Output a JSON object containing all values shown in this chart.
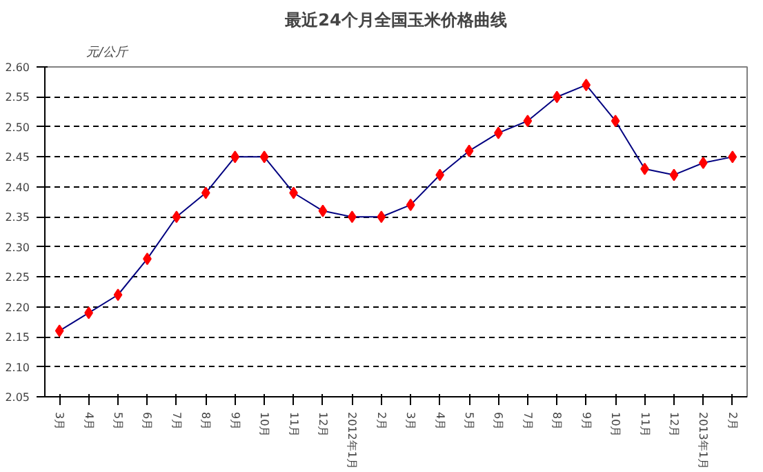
{
  "chart_data": {
    "type": "line",
    "title": "最近24个月全国玉米价格曲线",
    "ylabel": "元/公斤",
    "categories": [
      "3月",
      "4月",
      "5月",
      "6月",
      "7月",
      "8月",
      "9月",
      "10月",
      "11月",
      "12月",
      "2012年1月",
      "2月",
      "3月",
      "4月",
      "5月",
      "6月",
      "7月",
      "8月",
      "9月",
      "10月",
      "11月",
      "12月",
      "2013年1月",
      "2月"
    ],
    "series": [
      {
        "color": "#000080",
        "values": [
          2.16,
          2.19,
          2.22,
          2.28,
          2.35,
          2.39,
          2.45,
          2.45,
          2.39,
          2.36,
          2.35,
          2.35,
          2.37,
          2.42,
          2.46,
          2.49,
          2.51,
          2.55,
          2.57,
          2.51,
          2.43,
          2.42,
          2.44,
          2.45
        ]
      }
    ],
    "marker": "diamond",
    "ylim": [
      2.05,
      2.6
    ],
    "yticks": [
      {
        "value": 2.05,
        "label": "2.05"
      },
      {
        "value": 2.1,
        "label": "2.10"
      },
      {
        "value": 2.15,
        "label": "2.15"
      },
      {
        "value": 2.2,
        "label": "2.20"
      },
      {
        "value": 2.25,
        "label": "2.25"
      },
      {
        "value": 2.3,
        "label": "2.30"
      },
      {
        "value": 2.35,
        "label": "2.35"
      },
      {
        "value": 2.4,
        "label": "2.40"
      },
      {
        "value": 2.45,
        "label": "2.45"
      },
      {
        "value": 2.5,
        "label": "2.50"
      },
      {
        "value": 2.55,
        "label": "2.55"
      },
      {
        "value": 2.6,
        "label": "2.60"
      }
    ],
    "grid": "y",
    "line_style": "solid"
  }
}
